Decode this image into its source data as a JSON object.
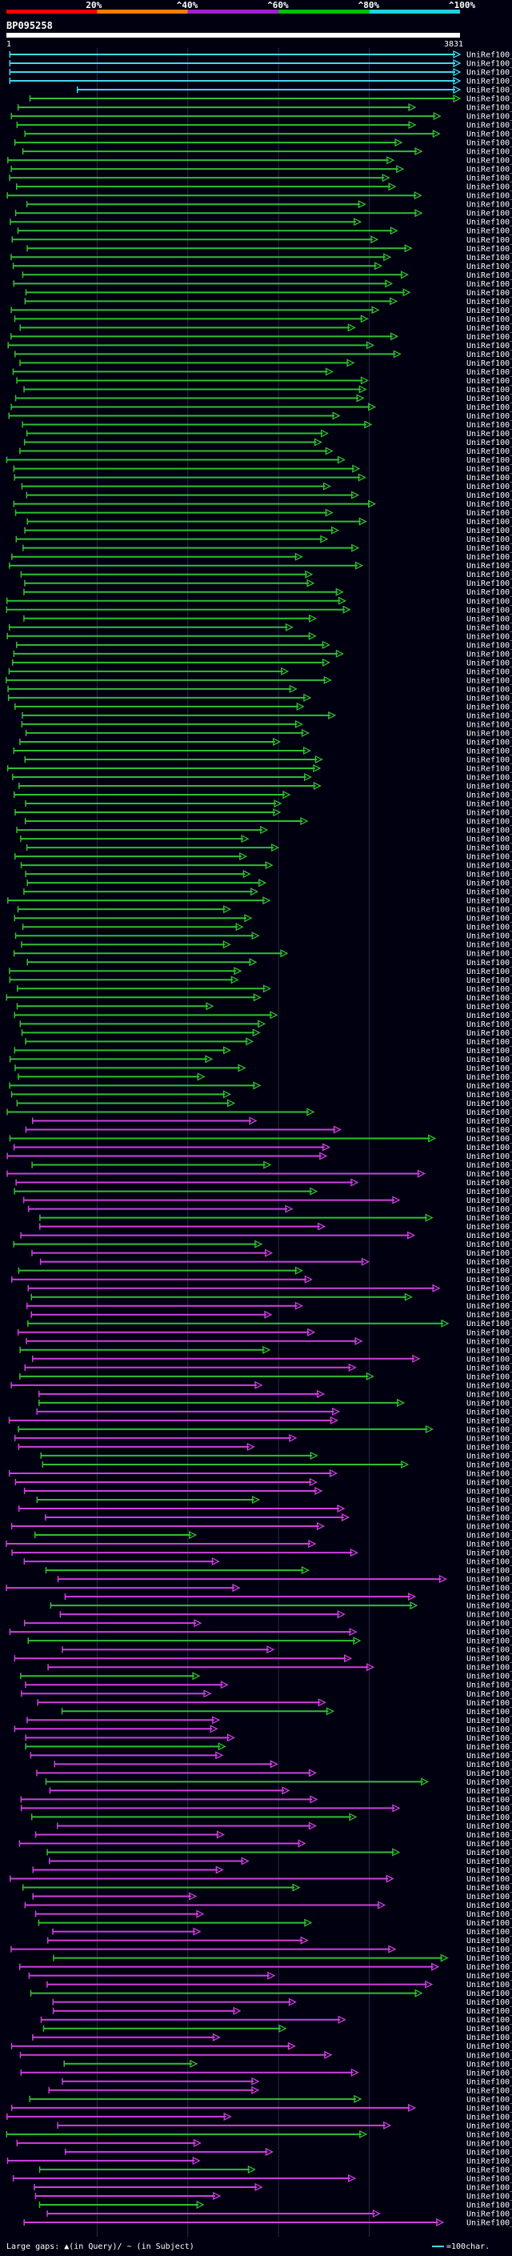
{
  "query": {
    "id": "BP095258",
    "start": "1",
    "end": "3831"
  },
  "colors": {
    "background": "#000010",
    "seg_red": "#ff0000",
    "seg_orange": "#f08000",
    "seg_purple": "#a020d0",
    "seg_green": "#00c000",
    "seg_cyan": "#20d0e0",
    "hit_cyan": "#40d8f0",
    "hit_green": "#30c030",
    "hit_magenta": "#d040e0",
    "axis": "#ffffff",
    "grid": "#2a2a4a"
  },
  "scale": {
    "marks": [
      {
        "label": "20%",
        "frac": 0.2
      },
      {
        "label": "^40%",
        "frac": 0.4
      },
      {
        "label": "^60%",
        "frac": 0.6
      },
      {
        "label": "^80%",
        "frac": 0.8
      },
      {
        "label": "^100%",
        "frac": 1.0
      }
    ]
  },
  "legend": {
    "text": "Large gaps: ▲(in Query)/ ~ (in Subject)",
    "scale_text": "=100char."
  },
  "chart_data": {
    "type": "alignment-overview",
    "title": "BP095258",
    "x_range": [
      1,
      3831
    ],
    "hits": []
  }
}
